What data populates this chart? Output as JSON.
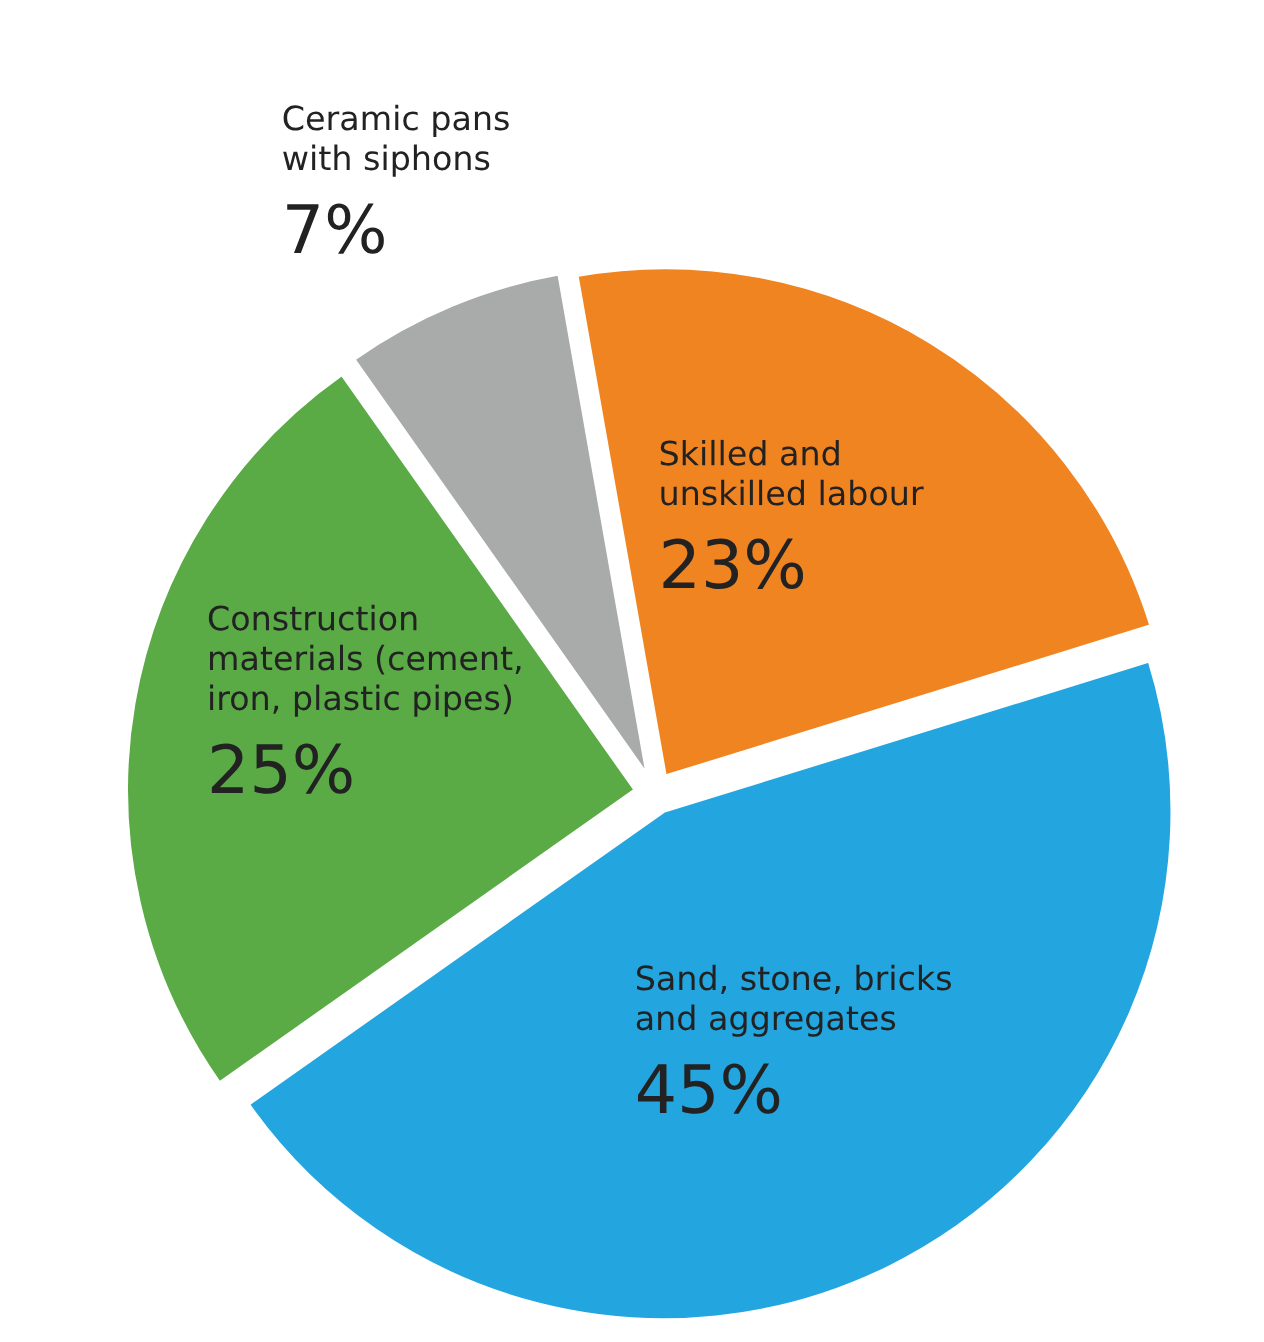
{
  "chart_data": {
    "type": "pie",
    "categories": [
      "Skilled and\nunskilled labour",
      "Sand, stone, bricks\nand aggregates",
      "Construction\nmaterials (cement,\niron, plastic pipes)",
      "Ceramic pans\nwith siphons"
    ],
    "values": [
      23,
      45,
      25,
      7
    ],
    "colors": [
      "#f08421",
      "#23a6df",
      "#5aaa46",
      "#a9abaa"
    ],
    "value_labels": [
      "23%",
      "45%",
      "25%",
      "7%"
    ]
  }
}
